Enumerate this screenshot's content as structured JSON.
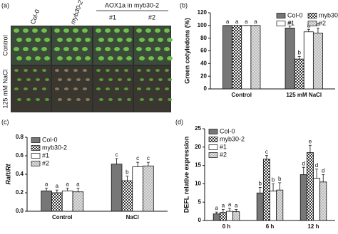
{
  "photo_panel": {
    "label": "(a)",
    "columns": [
      "Col-0",
      "myb30-2"
    ],
    "group_title": "AOX1a in myb30-2",
    "group_columns": [
      "#1",
      "#2"
    ],
    "rows": [
      "Control",
      "125 mM NaCl"
    ]
  },
  "chart_data": [
    {
      "type": "bar",
      "panel": "(b)",
      "ylabel": "Green cotyledons (%)",
      "categories": [
        "Control",
        "125 mM NaCl"
      ],
      "ylim": [
        0,
        120
      ],
      "yticks": [
        0,
        20,
        40,
        60,
        80,
        100,
        120
      ],
      "legend": "upper right",
      "series": [
        {
          "name": "Col-0",
          "color": "#777777",
          "pattern": "solid",
          "values": [
            100,
            96
          ],
          "errors": [
            0,
            3
          ],
          "letters": [
            "a",
            "a"
          ]
        },
        {
          "name": "myb30-2",
          "color": "#333333",
          "pattern": "checker",
          "values": [
            100,
            47
          ],
          "errors": [
            0,
            4
          ],
          "letters": [
            "a",
            "b"
          ]
        },
        {
          "name": "#1",
          "color": "#ffffff",
          "pattern": "solid",
          "values": [
            100,
            90
          ],
          "errors": [
            0,
            4
          ],
          "letters": [
            "a",
            "a"
          ]
        },
        {
          "name": "#2",
          "color": "#888888",
          "pattern": "dots",
          "values": [
            100,
            88
          ],
          "errors": [
            0,
            8
          ],
          "letters": [
            "a",
            "a"
          ]
        }
      ]
    },
    {
      "type": "bar",
      "panel": "(c)",
      "ylabel": "Ralt/Rt",
      "categories": [
        "Control",
        "NaCl"
      ],
      "ylim": [
        0,
        0.8
      ],
      "yticks": [
        {
          "value": 0,
          "label": "0.0"
        },
        0.2,
        0.4,
        0.6,
        0.8
      ],
      "legend": "upper left",
      "series": [
        {
          "name": "Col-0",
          "color": "#777777",
          "pattern": "solid",
          "values": [
            0.22,
            0.51
          ],
          "errors": [
            0.03,
            0.06
          ],
          "letters": [
            "a",
            "c"
          ]
        },
        {
          "name": "myb30-2",
          "color": "#333333",
          "pattern": "checker",
          "values": [
            0.2,
            0.33
          ],
          "errors": [
            0.03,
            0.05
          ],
          "letters": [
            "a",
            "b"
          ]
        },
        {
          "name": "#1",
          "color": "#ffffff",
          "pattern": "solid",
          "values": [
            0.22,
            0.48
          ],
          "errors": [
            0.03,
            0.05
          ],
          "letters": [
            "a",
            "c"
          ]
        },
        {
          "name": "#2",
          "color": "#888888",
          "pattern": "dots",
          "values": [
            0.21,
            0.49
          ],
          "errors": [
            0.04,
            0.04
          ],
          "letters": [
            "a",
            "c"
          ]
        }
      ]
    },
    {
      "type": "bar",
      "panel": "(d)",
      "ylabel": "DEFL relative expression",
      "categories": [
        "0 h",
        "6 h",
        "12 h"
      ],
      "ylim": [
        0,
        25
      ],
      "yticks": [
        0,
        5,
        10,
        15,
        20,
        25
      ],
      "legend": "upper left",
      "series": [
        {
          "name": "Col-0",
          "color": "#777777",
          "pattern": "solid",
          "values": [
            1.8,
            7.5,
            12.5
          ],
          "errors": [
            0.5,
            1.5,
            2
          ],
          "letters": [
            "a",
            "b",
            "d"
          ]
        },
        {
          "name": "myb30-2",
          "color": "#333333",
          "pattern": "checker",
          "values": [
            2.2,
            16.7,
            18.5
          ],
          "errors": [
            0.8,
            1,
            2
          ],
          "letters": [
            "a",
            "c",
            "e"
          ]
        },
        {
          "name": "#1",
          "color": "#ffffff",
          "pattern": "solid",
          "values": [
            2.5,
            8,
            11.5
          ],
          "errors": [
            0.8,
            2,
            2.5
          ],
          "letters": [
            "a",
            "b",
            "d"
          ]
        },
        {
          "name": "#2",
          "color": "#888888",
          "pattern": "dots",
          "values": [
            2.4,
            8.3,
            10.5
          ],
          "errors": [
            0.6,
            2,
            2
          ],
          "letters": [
            "a",
            "b",
            "d"
          ]
        }
      ]
    }
  ]
}
